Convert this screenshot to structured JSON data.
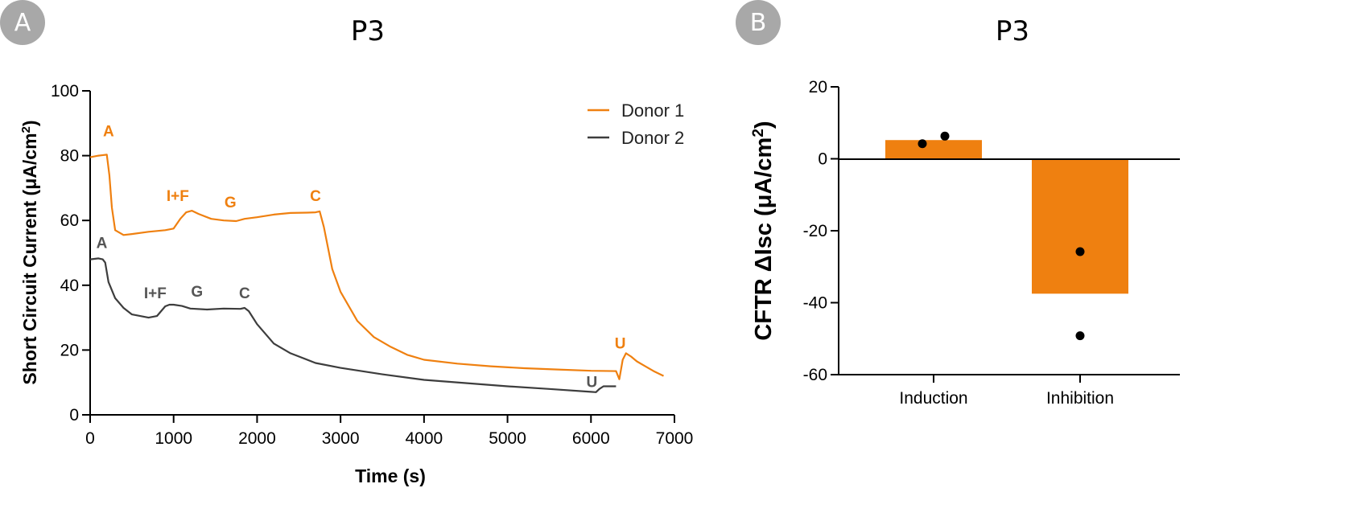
{
  "colors": {
    "donor1": "#ef8010",
    "donor2": "#3d3d3d",
    "bar": "#ef8010",
    "badge": "#a8a8a8"
  },
  "panels": {
    "a_label": "A",
    "b_label": "B"
  },
  "chart_data": [
    {
      "type": "line",
      "title": "P3",
      "xlabel": "Time (s)",
      "ylabel": "Short Circuit Current (μA/cm",
      "ylabel_sup": "2",
      "ylabel_close": ")",
      "xlim": [
        0,
        7000
      ],
      "ylim": [
        0,
        100
      ],
      "x_ticks": [
        "0",
        "1000",
        "2000",
        "3000",
        "4000",
        "5000",
        "6000",
        "7000"
      ],
      "y_ticks": [
        "0",
        "20",
        "40",
        "60",
        "80",
        "100"
      ],
      "legend_position": "top-right",
      "series": [
        {
          "name": "Donor 1",
          "x": [
            0,
            100,
            200,
            230,
            260,
            300,
            400,
            500,
            700,
            900,
            1000,
            1080,
            1150,
            1220,
            1300,
            1450,
            1600,
            1750,
            1850,
            2000,
            2200,
            2400,
            2600,
            2700,
            2750,
            2800,
            2900,
            3000,
            3200,
            3400,
            3600,
            3800,
            4000,
            4400,
            4800,
            5200,
            5600,
            6000,
            6300,
            6340,
            6380,
            6420,
            6480,
            6550,
            6650,
            6750,
            6870
          ],
          "y": [
            79.5,
            80,
            80.3,
            74,
            64,
            57,
            55.5,
            55.8,
            56.5,
            57,
            57.5,
            60.5,
            62.5,
            63,
            62,
            60.5,
            60,
            59.8,
            60.5,
            61,
            61.8,
            62.3,
            62.4,
            62.5,
            62.8,
            58,
            45,
            38,
            29,
            24,
            21,
            18.5,
            17,
            15.8,
            15,
            14.4,
            14,
            13.6,
            13.5,
            11,
            17,
            19,
            18,
            16.5,
            15,
            13.5,
            12
          ]
        },
        {
          "name": "Donor 2",
          "x": [
            0,
            100,
            150,
            180,
            220,
            300,
            400,
            500,
            700,
            800,
            850,
            900,
            950,
            1000,
            1100,
            1200,
            1400,
            1600,
            1800,
            1850,
            1900,
            2000,
            2200,
            2400,
            2700,
            3000,
            3500,
            4000,
            4500,
            5000,
            5500,
            6000,
            6060,
            6100,
            6150,
            6200,
            6300
          ],
          "y": [
            48,
            48.3,
            48,
            47,
            41,
            36,
            33,
            31,
            30,
            30.5,
            32,
            33.5,
            34,
            34,
            33.6,
            32.8,
            32.5,
            32.8,
            32.7,
            33,
            32,
            28,
            22,
            19,
            16,
            14.5,
            12.5,
            10.8,
            9.8,
            8.8,
            8,
            7.1,
            7,
            8,
            8.8,
            8.8,
            8.8
          ]
        }
      ],
      "annotations": [
        {
          "text": "A",
          "series": "Donor 1",
          "x": 220,
          "y": 86
        },
        {
          "text": "I+F",
          "series": "Donor 1",
          "x": 1050,
          "y": 66
        },
        {
          "text": "G",
          "series": "Donor 1",
          "x": 1680,
          "y": 64
        },
        {
          "text": "C",
          "series": "Donor 1",
          "x": 2700,
          "y": 66
        },
        {
          "text": "U",
          "series": "Donor 1",
          "x": 6350,
          "y": 20.5
        },
        {
          "text": "A",
          "series": "Donor 2",
          "x": 140,
          "y": 51.5
        },
        {
          "text": "I+F",
          "series": "Donor 2",
          "x": 780,
          "y": 36
        },
        {
          "text": "G",
          "series": "Donor 2",
          "x": 1280,
          "y": 36.5
        },
        {
          "text": "C",
          "series": "Donor 2",
          "x": 1850,
          "y": 36
        },
        {
          "text": "U",
          "series": "Donor 2",
          "x": 6010,
          "y": 8.5
        }
      ]
    },
    {
      "type": "bar",
      "title": "P3",
      "xlabel": "",
      "ylabel": "CFTR ΔIsc (μA/cm",
      "ylabel_sup": "2",
      "ylabel_close": ")",
      "ylim": [
        -60,
        20
      ],
      "y_ticks": [
        "20",
        "0",
        "-20",
        "-40",
        "-60"
      ],
      "categories": [
        "Induction",
        "Inhibition"
      ],
      "values": [
        5.2,
        -37.5
      ],
      "points": [
        {
          "category": "Induction",
          "values": [
            4.2,
            6.3
          ]
        },
        {
          "category": "Inhibition",
          "values": [
            -25.8,
            -49.2
          ]
        }
      ]
    }
  ]
}
